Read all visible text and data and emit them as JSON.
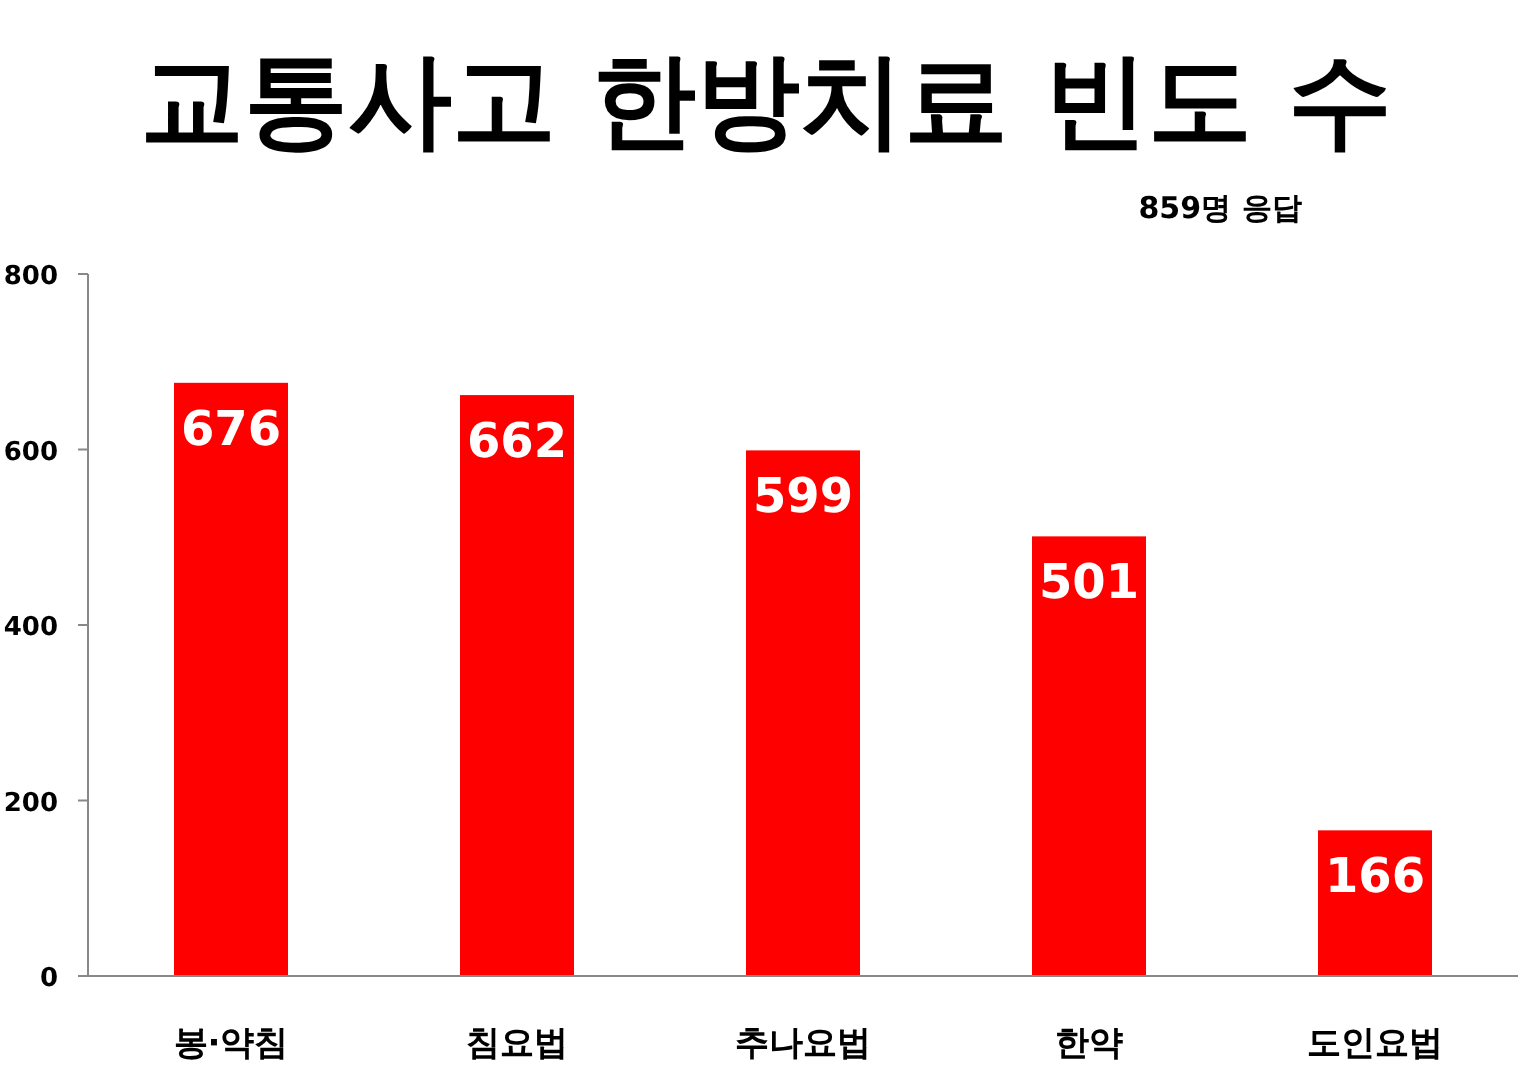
{
  "chart_data": {
    "type": "bar",
    "title": "교통사고 한방치료 빈도 수",
    "subtitle": "859명 응답",
    "categories": [
      "봉·약침",
      "침요법",
      "추나요법",
      "한약",
      "도인요법"
    ],
    "values": [
      676,
      662,
      599,
      501,
      166
    ],
    "color": "#ff0000",
    "ylim": [
      0,
      800
    ],
    "yticks": [
      0,
      200,
      400,
      600,
      800
    ],
    "grid": false,
    "data_labels": true
  }
}
